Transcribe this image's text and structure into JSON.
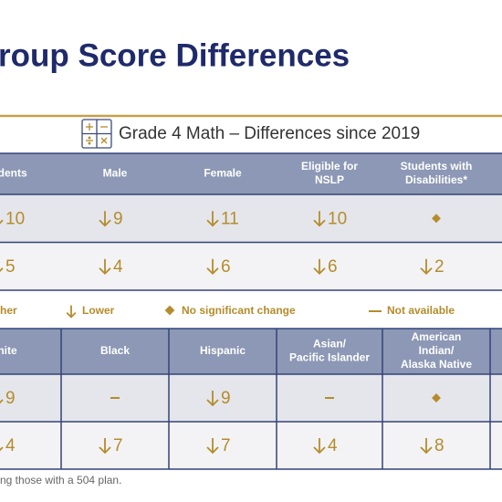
{
  "title": "roup Score Differences",
  "subtitle": "Grade 4 Math – Differences since 2019",
  "table_top": {
    "columns": [
      [
        "tudents"
      ],
      [
        "Male"
      ],
      [
        "Female"
      ],
      [
        "Eligible for",
        "NSLP"
      ],
      [
        "Students with",
        "Disabilities*"
      ]
    ],
    "rows": [
      [
        {
          "status": "lower",
          "text": 10
        },
        {
          "status": "lower",
          "text": 9
        },
        {
          "status": "lower",
          "text": 11
        },
        {
          "status": "lower",
          "text": 10
        },
        {
          "status": "no-change"
        }
      ],
      [
        {
          "status": "lower",
          "text": 5
        },
        {
          "status": "lower",
          "text": 4
        },
        {
          "status": "lower",
          "text": 6
        },
        {
          "status": "lower",
          "text": 6
        },
        {
          "status": "lower",
          "text": 2
        }
      ]
    ]
  },
  "legend": [
    {
      "status": "higher",
      "label": "her"
    },
    {
      "status": "lower",
      "label": "Lower"
    },
    {
      "status": "no-change",
      "label": "No significant change"
    },
    {
      "status": "not-available",
      "label": "Not available"
    }
  ],
  "table_bottom": {
    "columns": [
      [
        "hite"
      ],
      [
        "Black"
      ],
      [
        "Hispanic"
      ],
      [
        "Asian/",
        "Pacific Islander"
      ],
      [
        "American",
        "Indian/",
        "Alaska Native"
      ]
    ],
    "rows": [
      [
        {
          "status": "lower",
          "text": 9
        },
        {
          "status": "not-available"
        },
        {
          "status": "lower",
          "text": 9
        },
        {
          "status": "not-available"
        },
        {
          "status": "no-change"
        }
      ],
      [
        {
          "status": "lower",
          "text": 4
        },
        {
          "status": "lower",
          "text": 7
        },
        {
          "status": "lower",
          "text": 7
        },
        {
          "status": "lower",
          "text": 4
        },
        {
          "status": "lower",
          "text": 8
        }
      ]
    ]
  },
  "footnote": "ng those with a 504 plan."
}
